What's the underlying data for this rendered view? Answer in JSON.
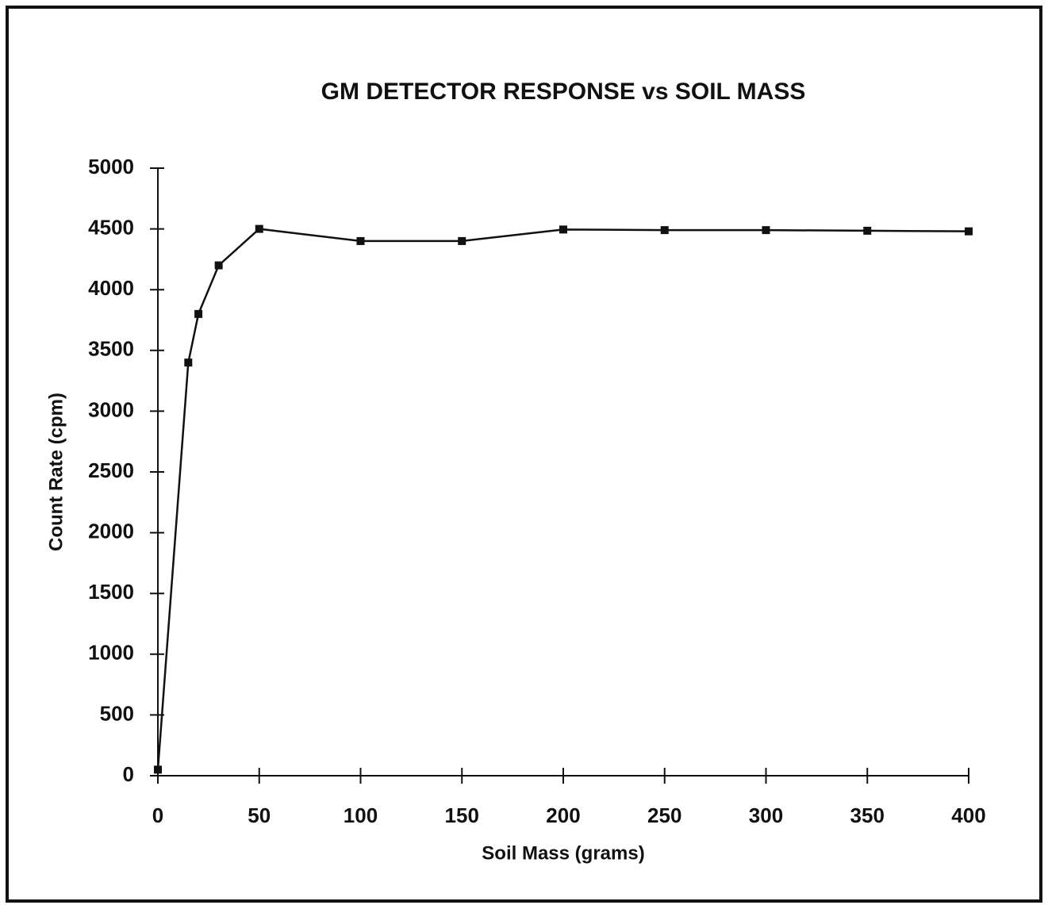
{
  "chart_data": {
    "type": "line",
    "title": "GM DETECTOR RESPONSE vs SOIL MASS",
    "x_label": "Soil Mass (grams)",
    "y_label": "Count Rate (cpm)",
    "x": [
      0,
      15,
      20,
      30,
      50,
      100,
      150,
      200,
      250,
      300,
      350,
      400
    ],
    "series": [
      {
        "name": "Count Rate",
        "color": "#111111",
        "values": [
          50,
          3400,
          3800,
          4200,
          4500,
          4400,
          4400,
          4495,
          4490,
          4490,
          4485,
          4480
        ]
      }
    ],
    "xlim": [
      0,
      400
    ],
    "xticks": [
      0,
      50,
      100,
      150,
      200,
      250,
      300,
      350,
      400
    ],
    "ylim": [
      0,
      5000
    ],
    "yticks": [
      0,
      500,
      1000,
      1500,
      2000,
      2500,
      3000,
      3500,
      4000,
      4500,
      5000
    ],
    "grid": false,
    "marker": "square"
  }
}
